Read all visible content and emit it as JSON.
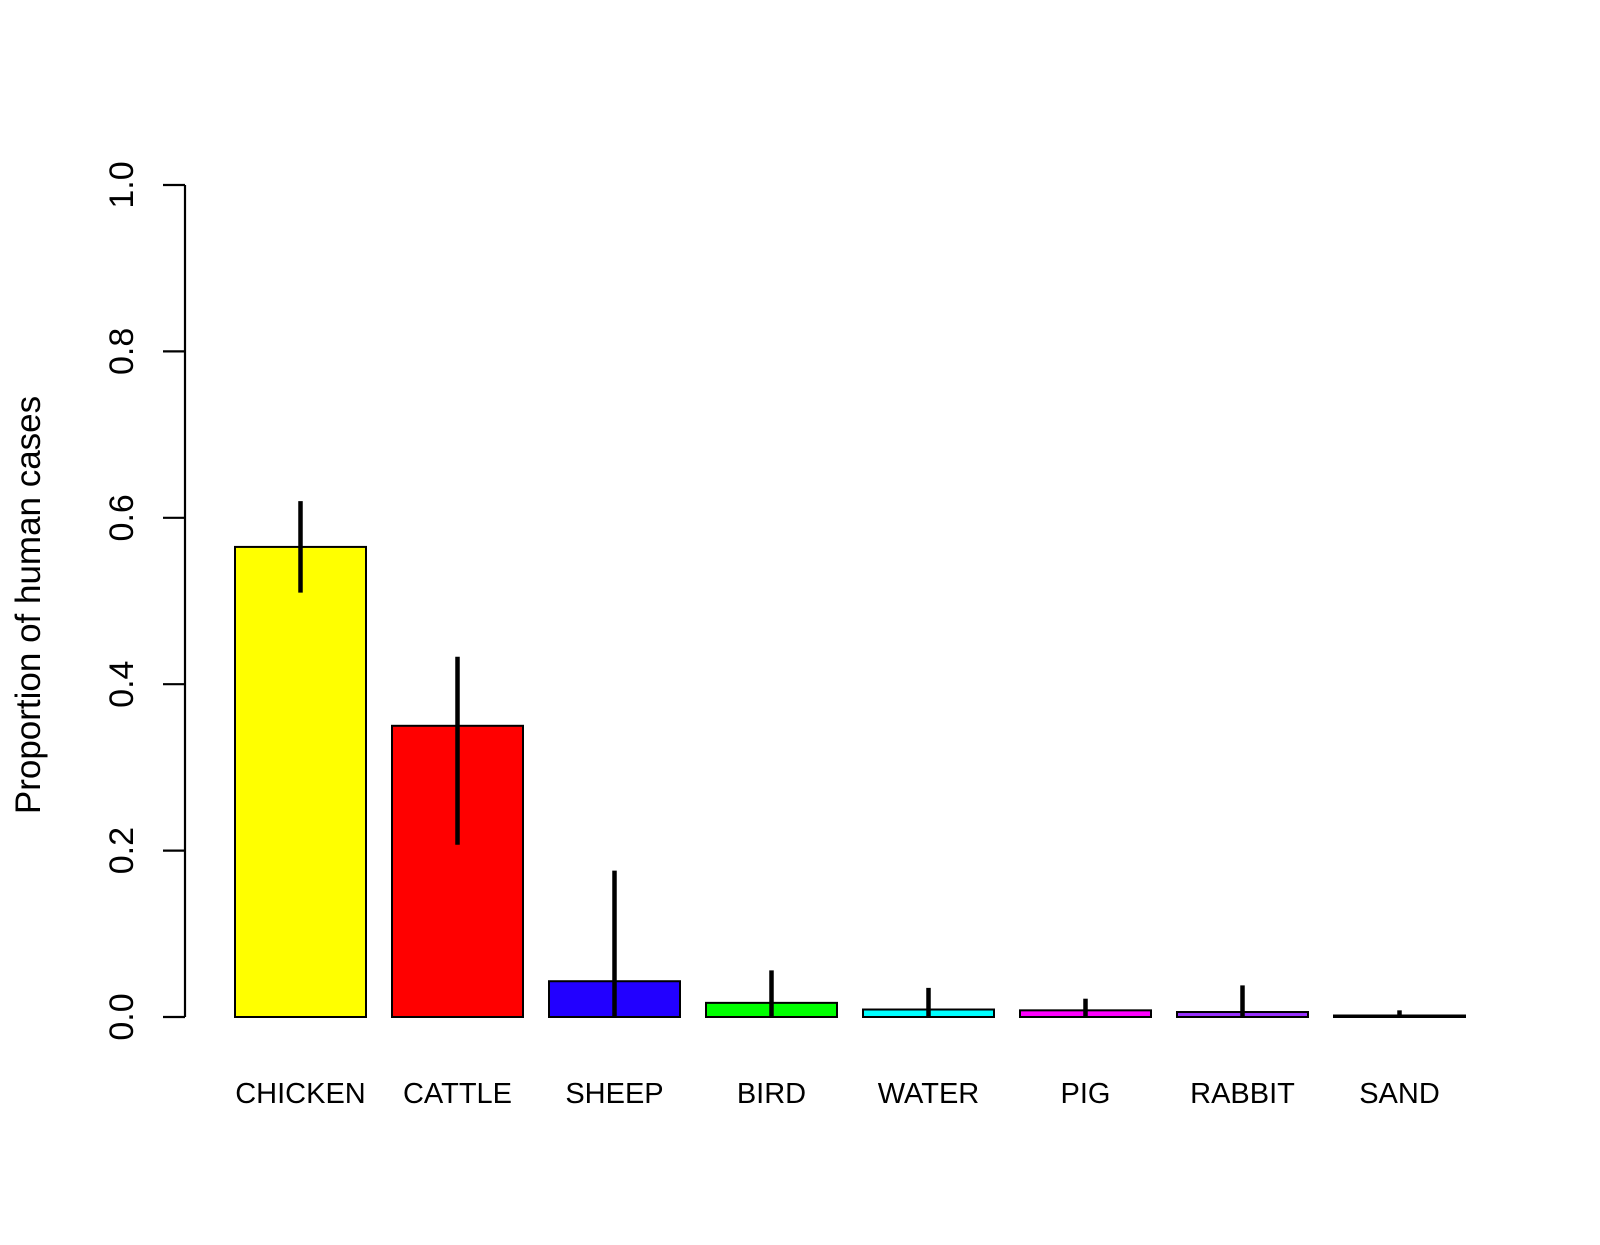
{
  "chart_data": {
    "type": "bar",
    "title": "",
    "xlabel": "",
    "ylabel": "Proportion of human cases",
    "ylim": [
      0,
      1
    ],
    "yticks": [
      0.0,
      0.2,
      0.4,
      0.6,
      0.8,
      1.0
    ],
    "ytick_labels": [
      "0.0",
      "0.2",
      "0.4",
      "0.6",
      "0.8",
      "1.0"
    ],
    "grid": false,
    "categories": [
      "CHICKEN",
      "CATTLE",
      "SHEEP",
      "BIRD",
      "WATER",
      "PIG",
      "RABBIT",
      "SAND"
    ],
    "values": [
      0.565,
      0.35,
      0.043,
      0.017,
      0.009,
      0.008,
      0.006,
      0.001
    ],
    "error_low": [
      0.51,
      0.207,
      0.0,
      0.0,
      0.0,
      0.0,
      0.0,
      0.0
    ],
    "error_high": [
      0.62,
      0.433,
      0.176,
      0.056,
      0.035,
      0.022,
      0.038,
      0.008
    ],
    "colors": [
      "#FFFF00",
      "#FF0000",
      "#2200FF",
      "#00FF00",
      "#00FFFF",
      "#FF00FF",
      "#9933FF",
      "#000000"
    ]
  }
}
